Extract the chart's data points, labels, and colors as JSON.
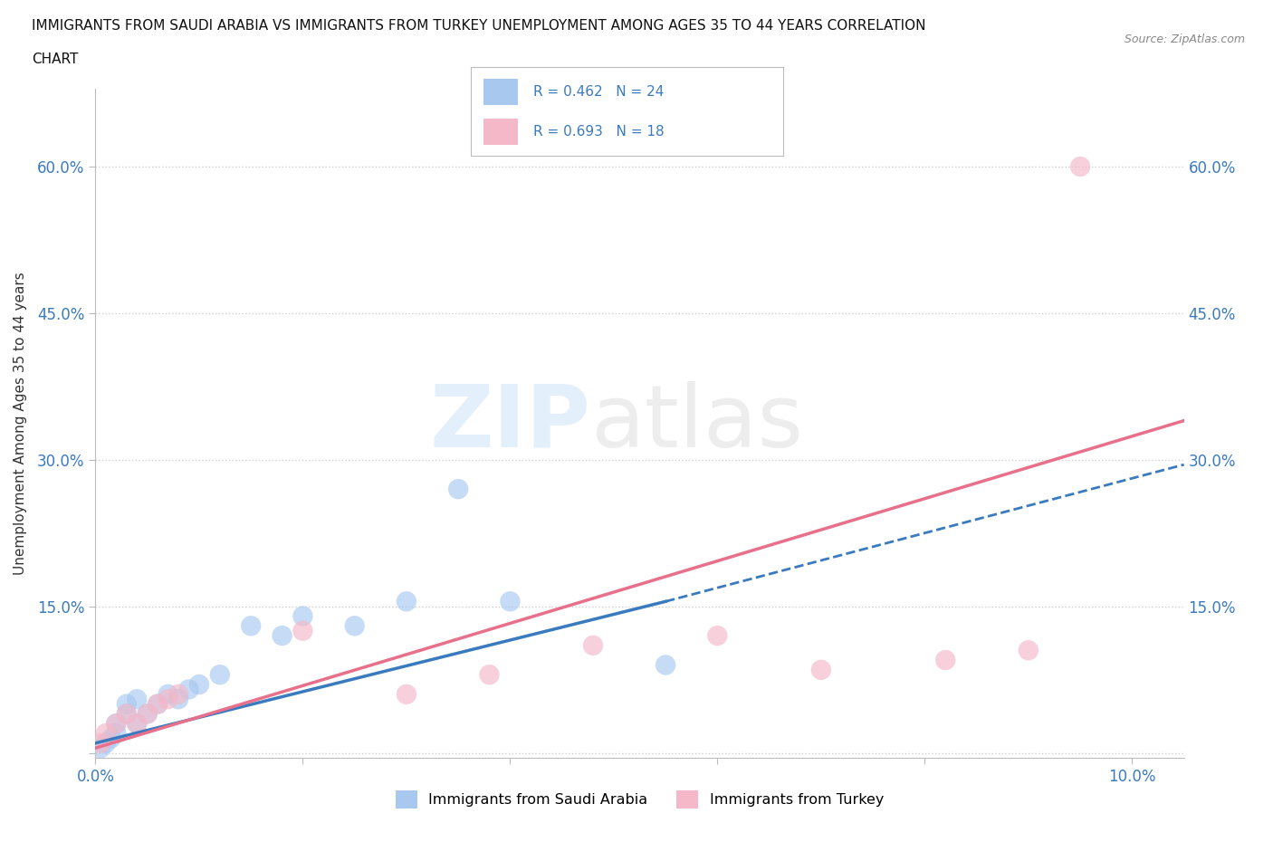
{
  "title_line1": "IMMIGRANTS FROM SAUDI ARABIA VS IMMIGRANTS FROM TURKEY UNEMPLOYMENT AMONG AGES 35 TO 44 YEARS CORRELATION",
  "title_line2": "CHART",
  "source": "Source: ZipAtlas.com",
  "ylabel": "Unemployment Among Ages 35 to 44 years",
  "xlim": [
    0.0,
    0.105
  ],
  "ylim": [
    -0.005,
    0.68
  ],
  "xticks": [
    0.0,
    0.02,
    0.04,
    0.06,
    0.08,
    0.1
  ],
  "yticks": [
    0.0,
    0.15,
    0.3,
    0.45,
    0.6
  ],
  "color_saudi": "#a8c8f0",
  "color_turkey": "#f5b8c8",
  "color_saudi_line": "#3a7abf",
  "color_turkey_line": "#e8708a",
  "legend_bottom_label1": "Immigrants from Saudi Arabia",
  "legend_bottom_label2": "Immigrants from Turkey",
  "saudi_x": [
    0.0005,
    0.001,
    0.0015,
    0.002,
    0.002,
    0.003,
    0.003,
    0.004,
    0.004,
    0.005,
    0.006,
    0.007,
    0.008,
    0.009,
    0.01,
    0.012,
    0.015,
    0.018,
    0.02,
    0.025,
    0.03,
    0.035,
    0.04,
    0.055
  ],
  "saudi_y": [
    0.005,
    0.01,
    0.015,
    0.02,
    0.03,
    0.04,
    0.05,
    0.03,
    0.055,
    0.04,
    0.05,
    0.06,
    0.055,
    0.065,
    0.07,
    0.08,
    0.13,
    0.12,
    0.14,
    0.13,
    0.155,
    0.27,
    0.155,
    0.09
  ],
  "turkey_x": [
    0.0005,
    0.001,
    0.002,
    0.003,
    0.004,
    0.005,
    0.006,
    0.007,
    0.008,
    0.02,
    0.03,
    0.038,
    0.048,
    0.06,
    0.07,
    0.082,
    0.09,
    0.095
  ],
  "turkey_y": [
    0.01,
    0.02,
    0.03,
    0.04,
    0.03,
    0.04,
    0.05,
    0.055,
    0.06,
    0.125,
    0.06,
    0.08,
    0.11,
    0.12,
    0.085,
    0.095,
    0.105,
    0.6
  ],
  "saudi_trend": [
    0.0,
    0.055,
    0.01,
    0.155
  ],
  "saudi_trend_ext": [
    0.055,
    0.105,
    0.155,
    0.295
  ],
  "turkey_trend": [
    0.0,
    0.105,
    0.005,
    0.34
  ],
  "background_color": "#ffffff",
  "grid_color": "#d0d0d0"
}
